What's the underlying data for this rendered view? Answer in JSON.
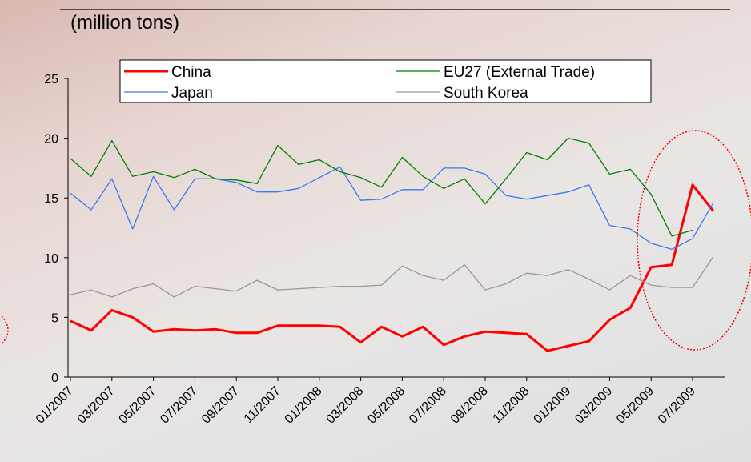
{
  "chart_data": {
    "type": "line",
    "subtitle": "(million tons)",
    "categories": [
      "01/2007",
      null,
      "03/2007",
      null,
      "05/2007",
      null,
      "07/2007",
      null,
      "09/2007",
      null,
      "11/2007",
      null,
      "01/2008",
      null,
      "03/2008",
      null,
      "05/2008",
      null,
      "07/2008",
      null,
      "09/2008",
      null,
      "11/2008",
      null,
      "01/2009",
      null,
      "03/2009",
      null,
      "05/2009",
      null,
      "07/2009",
      null
    ],
    "series": [
      {
        "name": "China",
        "color": "#ff0000",
        "width": 3,
        "values": [
          4.7,
          3.9,
          5.6,
          5.0,
          3.8,
          4.0,
          3.9,
          4.0,
          3.7,
          3.7,
          4.3,
          4.3,
          4.3,
          4.2,
          2.9,
          4.2,
          3.4,
          4.2,
          2.7,
          3.4,
          3.8,
          3.7,
          3.6,
          2.2,
          2.6,
          3.0,
          4.8,
          5.8,
          9.2,
          9.4,
          16.1,
          13.9
        ]
      },
      {
        "name": "Japan",
        "color": "#3c78f0",
        "width": 1.3,
        "values": [
          15.4,
          14.0,
          16.6,
          12.4,
          16.8,
          14.0,
          16.6,
          16.6,
          16.3,
          15.5,
          15.5,
          15.8,
          16.7,
          17.6,
          14.8,
          14.9,
          15.7,
          15.7,
          17.5,
          17.5,
          17.0,
          15.2,
          14.9,
          15.2,
          15.5,
          16.1,
          12.7,
          12.4,
          11.2,
          10.7,
          11.6,
          14.6
        ]
      },
      {
        "name": "EU27 (External Trade)",
        "color": "#008000",
        "width": 1.3,
        "values": [
          18.3,
          16.8,
          19.8,
          16.8,
          17.2,
          16.7,
          17.4,
          16.6,
          16.5,
          16.2,
          19.4,
          17.8,
          18.2,
          17.2,
          16.7,
          15.9,
          18.4,
          16.8,
          15.8,
          16.6,
          14.5,
          16.6,
          18.8,
          18.2,
          20.0,
          19.6,
          17.0,
          17.4,
          15.3,
          11.8,
          12.3,
          null
        ]
      },
      {
        "name": "South Korea",
        "color": "#999999",
        "width": 1.3,
        "values": [
          6.9,
          7.3,
          6.7,
          7.4,
          7.8,
          6.7,
          7.6,
          7.4,
          7.2,
          8.1,
          7.3,
          7.4,
          7.5,
          7.6,
          7.6,
          7.7,
          9.3,
          8.5,
          8.1,
          9.4,
          7.3,
          7.8,
          8.7,
          8.5,
          9.0,
          8.2,
          7.3,
          8.5,
          7.7,
          7.5,
          7.5,
          10.1
        ]
      }
    ],
    "ylim": [
      0,
      25
    ],
    "yticks": [
      0,
      5,
      10,
      15,
      20,
      25
    ],
    "grid": false,
    "legend_position": "top"
  }
}
